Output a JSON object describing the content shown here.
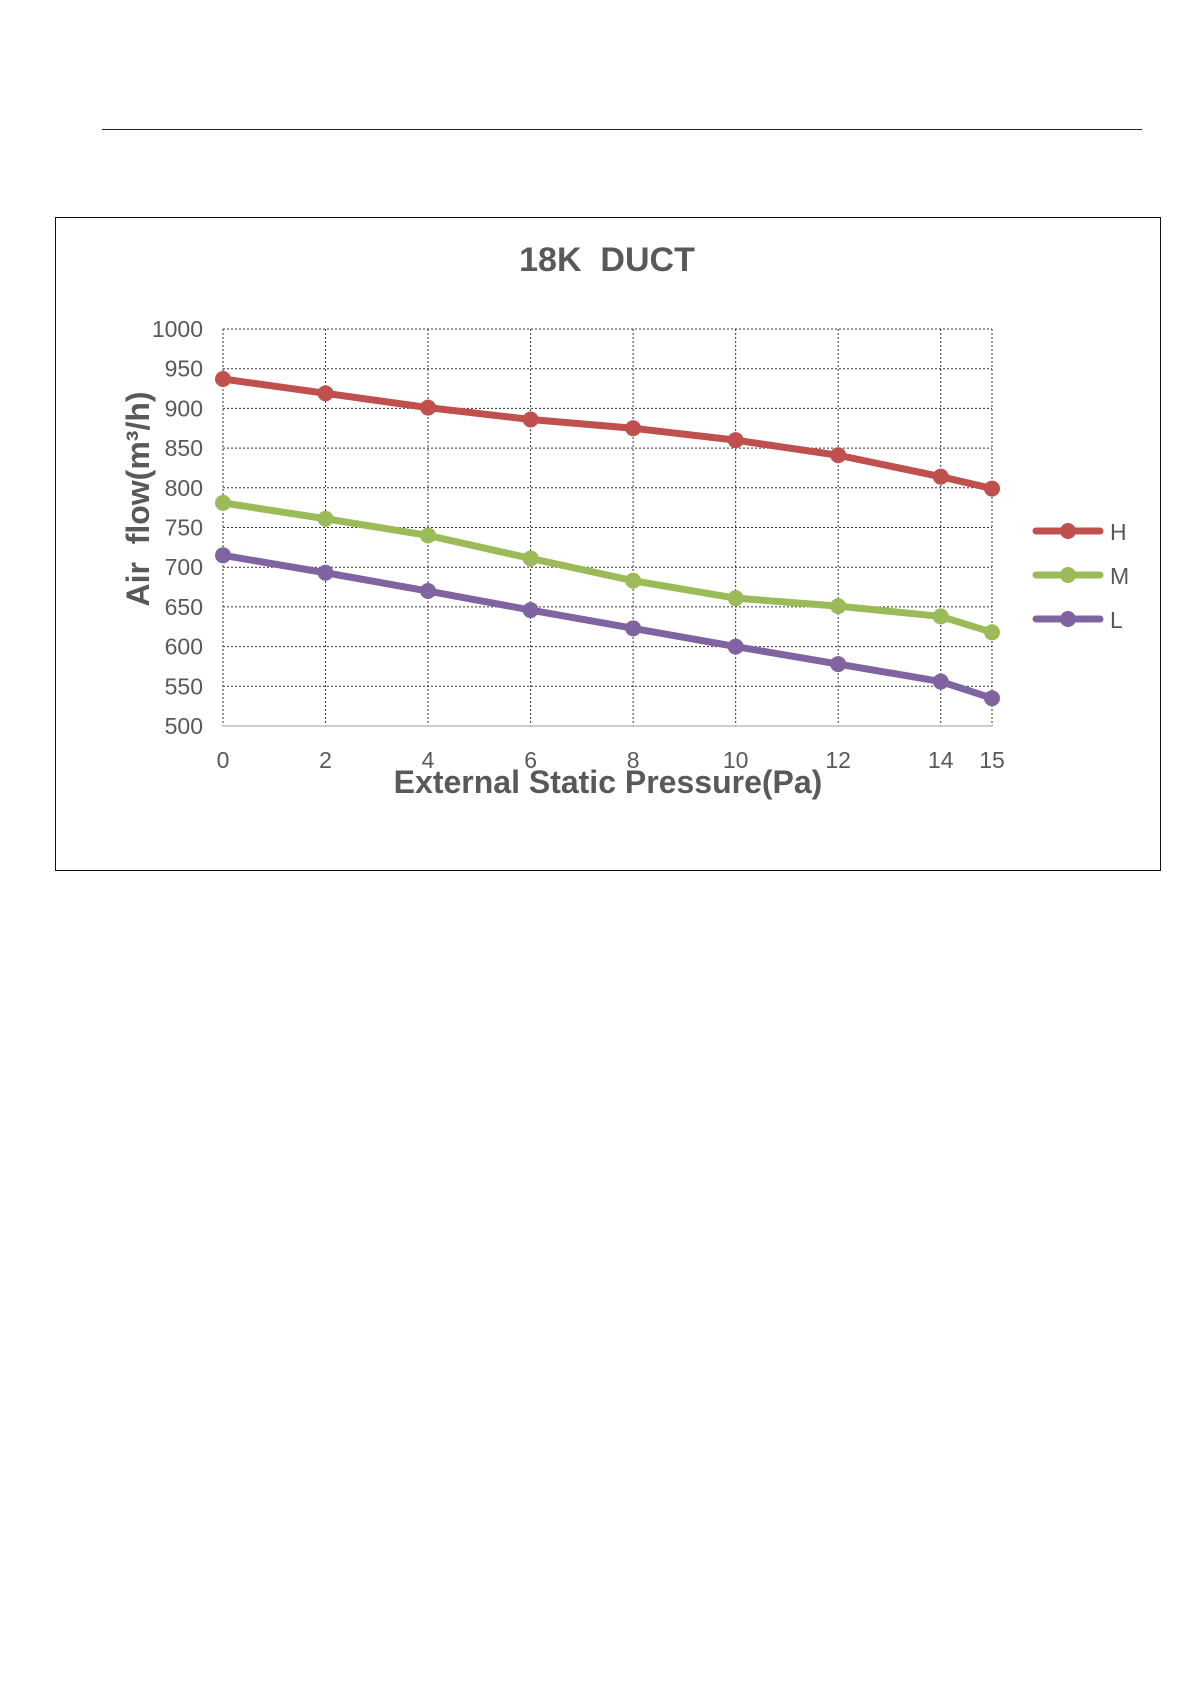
{
  "chart_data": {
    "type": "line",
    "title": "18K  DUCT",
    "xlabel": "External Static Pressure(Pa)",
    "ylabel": "Air  flow(m³/h)",
    "x": [
      0,
      2,
      4,
      6,
      8,
      10,
      12,
      14,
      15
    ],
    "x_tick_labels": [
      "0",
      "2",
      "4",
      "6",
      "8",
      "10",
      "12",
      "14",
      "15"
    ],
    "ylim": [
      500,
      1000
    ],
    "y_ticks": [
      500,
      550,
      600,
      650,
      700,
      750,
      800,
      850,
      900,
      950,
      1000
    ],
    "y_tick_labels": [
      "500",
      "550",
      "600",
      "650",
      "700",
      "750",
      "800",
      "850",
      "900",
      "950",
      "1000"
    ],
    "grid": true,
    "legend_position": "right",
    "series": [
      {
        "name": "H",
        "color": "#c0504d",
        "values": [
          937,
          919,
          901,
          886,
          875,
          860,
          841,
          814,
          799
        ]
      },
      {
        "name": "M",
        "color": "#9bbb59",
        "values": [
          781,
          761,
          740,
          711,
          683,
          661,
          651,
          638,
          618
        ]
      },
      {
        "name": "L",
        "color": "#8064a2",
        "values": [
          715,
          693,
          670,
          646,
          623,
          600,
          578,
          556,
          535
        ]
      }
    ]
  }
}
